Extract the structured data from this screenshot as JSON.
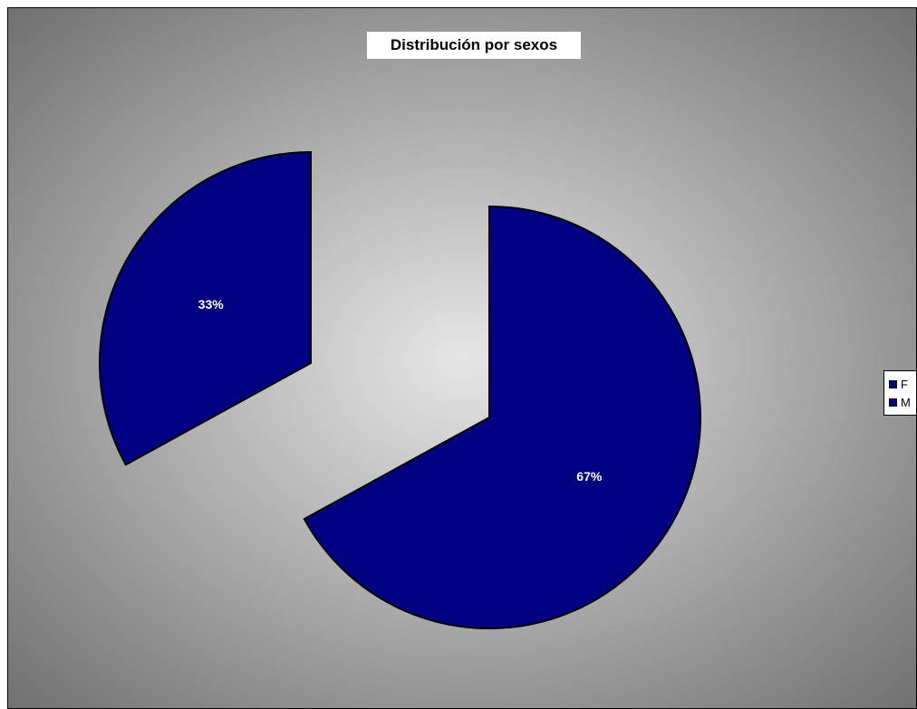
{
  "chart_data": {
    "type": "pie",
    "title": "Distribución por sexos",
    "slices": [
      {
        "label": "F",
        "value": 67,
        "display": "67%",
        "color": "#000080"
      },
      {
        "label": "M",
        "value": 33,
        "display": "33%",
        "color": "#000080"
      }
    ],
    "legend_position": "right",
    "exploded": true,
    "data_labels": "percent"
  },
  "colors": {
    "slice_fill": "#000080",
    "slice_stroke": "#000000",
    "background_center": "#e6e6e6",
    "background_edge": "#6e6e6e",
    "label_text": "#ffffff"
  }
}
